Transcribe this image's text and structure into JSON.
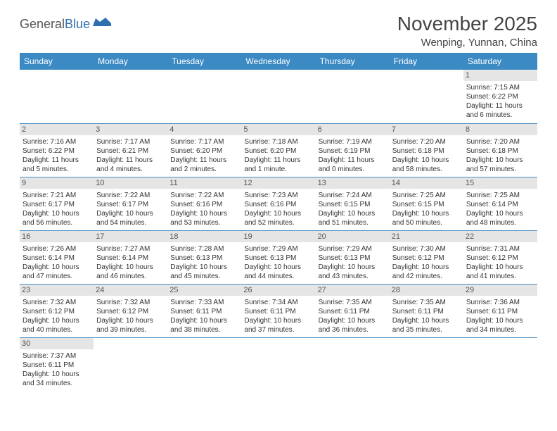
{
  "logo": {
    "text1": "General",
    "text2": "Blue"
  },
  "title": "November 2025",
  "location": "Wenping, Yunnan, China",
  "colors": {
    "header_bg": "#3b8ac4",
    "header_text": "#ffffff",
    "daynum_bg": "#e5e5e5",
    "row_border": "#4a8ec4",
    "logo_blue": "#2f6fb0"
  },
  "weekdays": [
    "Sunday",
    "Monday",
    "Tuesday",
    "Wednesday",
    "Thursday",
    "Friday",
    "Saturday"
  ],
  "days": [
    {
      "n": 1,
      "sunrise": "7:15 AM",
      "sunset": "6:22 PM",
      "daylight": "11 hours and 6 minutes."
    },
    {
      "n": 2,
      "sunrise": "7:16 AM",
      "sunset": "6:22 PM",
      "daylight": "11 hours and 5 minutes."
    },
    {
      "n": 3,
      "sunrise": "7:17 AM",
      "sunset": "6:21 PM",
      "daylight": "11 hours and 4 minutes."
    },
    {
      "n": 4,
      "sunrise": "7:17 AM",
      "sunset": "6:20 PM",
      "daylight": "11 hours and 2 minutes."
    },
    {
      "n": 5,
      "sunrise": "7:18 AM",
      "sunset": "6:20 PM",
      "daylight": "11 hours and 1 minute."
    },
    {
      "n": 6,
      "sunrise": "7:19 AM",
      "sunset": "6:19 PM",
      "daylight": "11 hours and 0 minutes."
    },
    {
      "n": 7,
      "sunrise": "7:20 AM",
      "sunset": "6:18 PM",
      "daylight": "10 hours and 58 minutes."
    },
    {
      "n": 8,
      "sunrise": "7:20 AM",
      "sunset": "6:18 PM",
      "daylight": "10 hours and 57 minutes."
    },
    {
      "n": 9,
      "sunrise": "7:21 AM",
      "sunset": "6:17 PM",
      "daylight": "10 hours and 56 minutes."
    },
    {
      "n": 10,
      "sunrise": "7:22 AM",
      "sunset": "6:17 PM",
      "daylight": "10 hours and 54 minutes."
    },
    {
      "n": 11,
      "sunrise": "7:22 AM",
      "sunset": "6:16 PM",
      "daylight": "10 hours and 53 minutes."
    },
    {
      "n": 12,
      "sunrise": "7:23 AM",
      "sunset": "6:16 PM",
      "daylight": "10 hours and 52 minutes."
    },
    {
      "n": 13,
      "sunrise": "7:24 AM",
      "sunset": "6:15 PM",
      "daylight": "10 hours and 51 minutes."
    },
    {
      "n": 14,
      "sunrise": "7:25 AM",
      "sunset": "6:15 PM",
      "daylight": "10 hours and 50 minutes."
    },
    {
      "n": 15,
      "sunrise": "7:25 AM",
      "sunset": "6:14 PM",
      "daylight": "10 hours and 48 minutes."
    },
    {
      "n": 16,
      "sunrise": "7:26 AM",
      "sunset": "6:14 PM",
      "daylight": "10 hours and 47 minutes."
    },
    {
      "n": 17,
      "sunrise": "7:27 AM",
      "sunset": "6:14 PM",
      "daylight": "10 hours and 46 minutes."
    },
    {
      "n": 18,
      "sunrise": "7:28 AM",
      "sunset": "6:13 PM",
      "daylight": "10 hours and 45 minutes."
    },
    {
      "n": 19,
      "sunrise": "7:29 AM",
      "sunset": "6:13 PM",
      "daylight": "10 hours and 44 minutes."
    },
    {
      "n": 20,
      "sunrise": "7:29 AM",
      "sunset": "6:13 PM",
      "daylight": "10 hours and 43 minutes."
    },
    {
      "n": 21,
      "sunrise": "7:30 AM",
      "sunset": "6:12 PM",
      "daylight": "10 hours and 42 minutes."
    },
    {
      "n": 22,
      "sunrise": "7:31 AM",
      "sunset": "6:12 PM",
      "daylight": "10 hours and 41 minutes."
    },
    {
      "n": 23,
      "sunrise": "7:32 AM",
      "sunset": "6:12 PM",
      "daylight": "10 hours and 40 minutes."
    },
    {
      "n": 24,
      "sunrise": "7:32 AM",
      "sunset": "6:12 PM",
      "daylight": "10 hours and 39 minutes."
    },
    {
      "n": 25,
      "sunrise": "7:33 AM",
      "sunset": "6:11 PM",
      "daylight": "10 hours and 38 minutes."
    },
    {
      "n": 26,
      "sunrise": "7:34 AM",
      "sunset": "6:11 PM",
      "daylight": "10 hours and 37 minutes."
    },
    {
      "n": 27,
      "sunrise": "7:35 AM",
      "sunset": "6:11 PM",
      "daylight": "10 hours and 36 minutes."
    },
    {
      "n": 28,
      "sunrise": "7:35 AM",
      "sunset": "6:11 PM",
      "daylight": "10 hours and 35 minutes."
    },
    {
      "n": 29,
      "sunrise": "7:36 AM",
      "sunset": "6:11 PM",
      "daylight": "10 hours and 34 minutes."
    },
    {
      "n": 30,
      "sunrise": "7:37 AM",
      "sunset": "6:11 PM",
      "daylight": "10 hours and 34 minutes."
    }
  ],
  "grid": {
    "first_day_of_week_index": 6,
    "rows": 6,
    "cols": 7
  },
  "labels": {
    "sunrise_prefix": "Sunrise: ",
    "sunset_prefix": "Sunset: ",
    "daylight_prefix": "Daylight: "
  }
}
